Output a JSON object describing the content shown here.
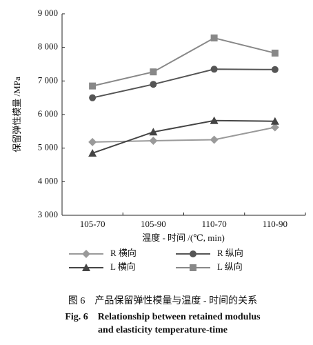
{
  "chart_data": {
    "type": "line",
    "ylabel": "保留弹性模量 /MPa",
    "xlabel": "温度 - 时间 /(℃, min)",
    "categories": [
      "105-70",
      "105-90",
      "110-70",
      "110-90"
    ],
    "ylim": [
      3000,
      9000
    ],
    "yticks": [
      {
        "value": 3000,
        "label": "3 000"
      },
      {
        "value": 4000,
        "label": "4 000"
      },
      {
        "value": 5000,
        "label": "5 000"
      },
      {
        "value": 6000,
        "label": "6 000"
      },
      {
        "value": 7000,
        "label": "7 000"
      },
      {
        "value": 8000,
        "label": "8 000"
      },
      {
        "value": 9000,
        "label": "9 000"
      }
    ],
    "series": [
      {
        "name": "R 横向",
        "color": "#9a9a9a",
        "marker": "diamond",
        "values": [
          5180,
          5220,
          5250,
          5620
        ]
      },
      {
        "name": "R 纵向",
        "color": "#555555",
        "marker": "circle",
        "values": [
          6500,
          6900,
          7350,
          7340
        ]
      },
      {
        "name": "L 横向",
        "color": "#444444",
        "marker": "triangle",
        "values": [
          4850,
          5480,
          5820,
          5800
        ]
      },
      {
        "name": "L 纵向",
        "color": "#888888",
        "marker": "square",
        "values": [
          6850,
          7270,
          8280,
          7830
        ]
      }
    ],
    "caption": [
      "图 6　产品保留弹性模量与温度 - 时间的关系",
      "Fig. 6　Relationship between retained modulus",
      "and elasticity temperature-time"
    ]
  }
}
